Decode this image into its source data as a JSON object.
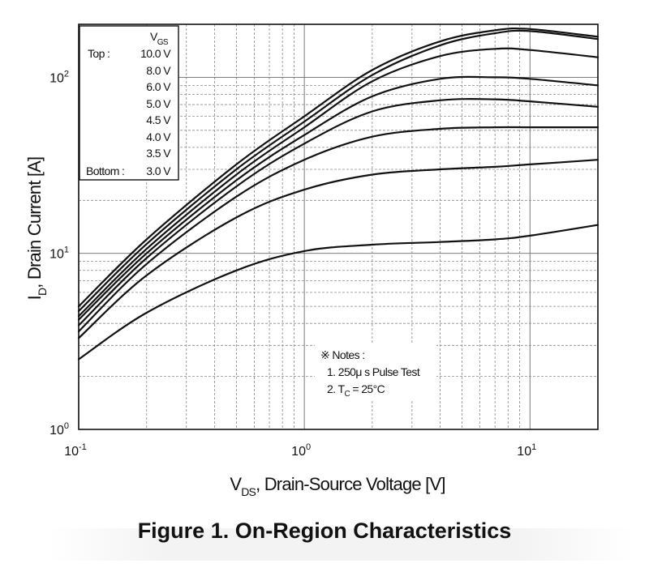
{
  "chart_data": {
    "type": "line",
    "title": "Figure 1. On-Region Characteristics",
    "xlabel": "V_DS, Drain-Source Voltage [V]",
    "ylabel": "I_D, Drain Current [A]",
    "x_scale": "log",
    "y_scale": "log",
    "xlim": [
      0.1,
      20
    ],
    "ylim": [
      1,
      200
    ],
    "grid": true,
    "x_ticks": [
      {
        "base": "10",
        "exp": "-1",
        "value": 0.1
      },
      {
        "base": "10",
        "exp": "0",
        "value": 1
      },
      {
        "base": "10",
        "exp": "1",
        "value": 10
      }
    ],
    "y_ticks": [
      {
        "base": "10",
        "exp": "0",
        "value": 1
      },
      {
        "base": "10",
        "exp": "1",
        "value": 10
      },
      {
        "base": "10",
        "exp": "2",
        "value": 100
      }
    ],
    "legend": {
      "placement": "top-left",
      "header": "VGS",
      "header_main": "V",
      "header_sub": "GS",
      "top_label": "Top :",
      "bottom_label": "Bottom :",
      "entries": [
        "10.0 V",
        "8.0 V",
        "6.0 V",
        "5.0 V",
        "4.5 V",
        "4.0 V",
        "3.5 V",
        "3.0 V"
      ]
    },
    "series": [
      {
        "name": "10.0 V",
        "x": [
          0.1,
          0.2,
          0.5,
          1,
          2,
          4,
          7,
          10,
          20
        ],
        "values": [
          5.0,
          12.0,
          32,
          60,
          110,
          160,
          185,
          188,
          170
        ]
      },
      {
        "name": "8.0 V",
        "x": [
          0.1,
          0.2,
          0.5,
          1,
          2,
          4,
          7,
          10,
          20
        ],
        "values": [
          4.7,
          11.3,
          30,
          56,
          103,
          152,
          178,
          183,
          165
        ]
      },
      {
        "name": "6.0 V",
        "x": [
          0.1,
          0.2,
          0.5,
          1,
          2,
          4,
          7,
          10,
          20
        ],
        "values": [
          4.4,
          10.6,
          28,
          52,
          95,
          132,
          145,
          143,
          130
        ]
      },
      {
        "name": "5.0 V",
        "x": [
          0.1,
          0.2,
          0.5,
          1,
          2,
          4,
          7,
          10,
          20
        ],
        "values": [
          4.2,
          10.0,
          26,
          47,
          78,
          98,
          100,
          98,
          90
        ]
      },
      {
        "name": "4.5 V",
        "x": [
          0.1,
          0.2,
          0.5,
          1,
          2,
          4,
          7,
          10,
          20
        ],
        "values": [
          3.9,
          9.4,
          24,
          42,
          64,
          74,
          75,
          73,
          68
        ]
      },
      {
        "name": "4.0 V",
        "x": [
          0.1,
          0.2,
          0.5,
          1,
          2,
          4,
          7,
          10,
          20
        ],
        "values": [
          3.6,
          8.7,
          21,
          34,
          46,
          51,
          52,
          52,
          52
        ]
      },
      {
        "name": "3.5 V",
        "x": [
          0.1,
          0.2,
          0.5,
          1,
          2,
          4,
          7,
          10,
          20
        ],
        "values": [
          3.3,
          7.5,
          16,
          23,
          28,
          30,
          31,
          32,
          34
        ]
      },
      {
        "name": "3.0 V",
        "x": [
          0.1,
          0.2,
          0.5,
          1,
          2,
          4,
          7,
          10,
          20
        ],
        "values": [
          2.5,
          4.6,
          8.0,
          10.3,
          11.2,
          11.6,
          12.0,
          12.6,
          14.5
        ]
      }
    ],
    "notes": {
      "title": "※ Notes :",
      "line1": "1. 250μ s Pulse Test",
      "line2_main": "2. T",
      "line2_sub": "C",
      "line2_rest": " = 25°C"
    },
    "xlabel_main": "V",
    "xlabel_sub": "DS",
    "xlabel_rest": ", Drain-Source Voltage [V]",
    "ylabel_main": "I",
    "ylabel_sub": "D",
    "ylabel_rest": ", Drain Current [A]"
  },
  "caption": "Figure 1. On-Region Characteristics"
}
